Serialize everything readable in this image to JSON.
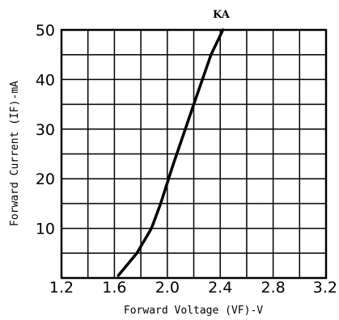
{
  "chart_data": {
    "type": "line",
    "title": "",
    "xlabel": "Forward Voltage (VF)-V",
    "ylabel": "Forward Current (IF)-mA",
    "xlim": [
      1.2,
      3.2
    ],
    "ylim": [
      0,
      50
    ],
    "x_ticks": [
      "1.2",
      "1.6",
      "2.0",
      "2.4",
      "2.8",
      "3.2"
    ],
    "y_ticks": [
      "10",
      "20",
      "30",
      "40",
      "50"
    ],
    "grid": true,
    "x_grid_step": 0.2,
    "y_grid_step": 5,
    "annotation": "KA",
    "series": [
      {
        "name": "KA",
        "x": [
          1.63,
          1.77,
          1.88,
          1.95,
          2.04,
          2.2,
          2.33,
          2.42
        ],
        "y": [
          0.5,
          5,
          10,
          15,
          22.5,
          35,
          45,
          50
        ]
      }
    ]
  }
}
